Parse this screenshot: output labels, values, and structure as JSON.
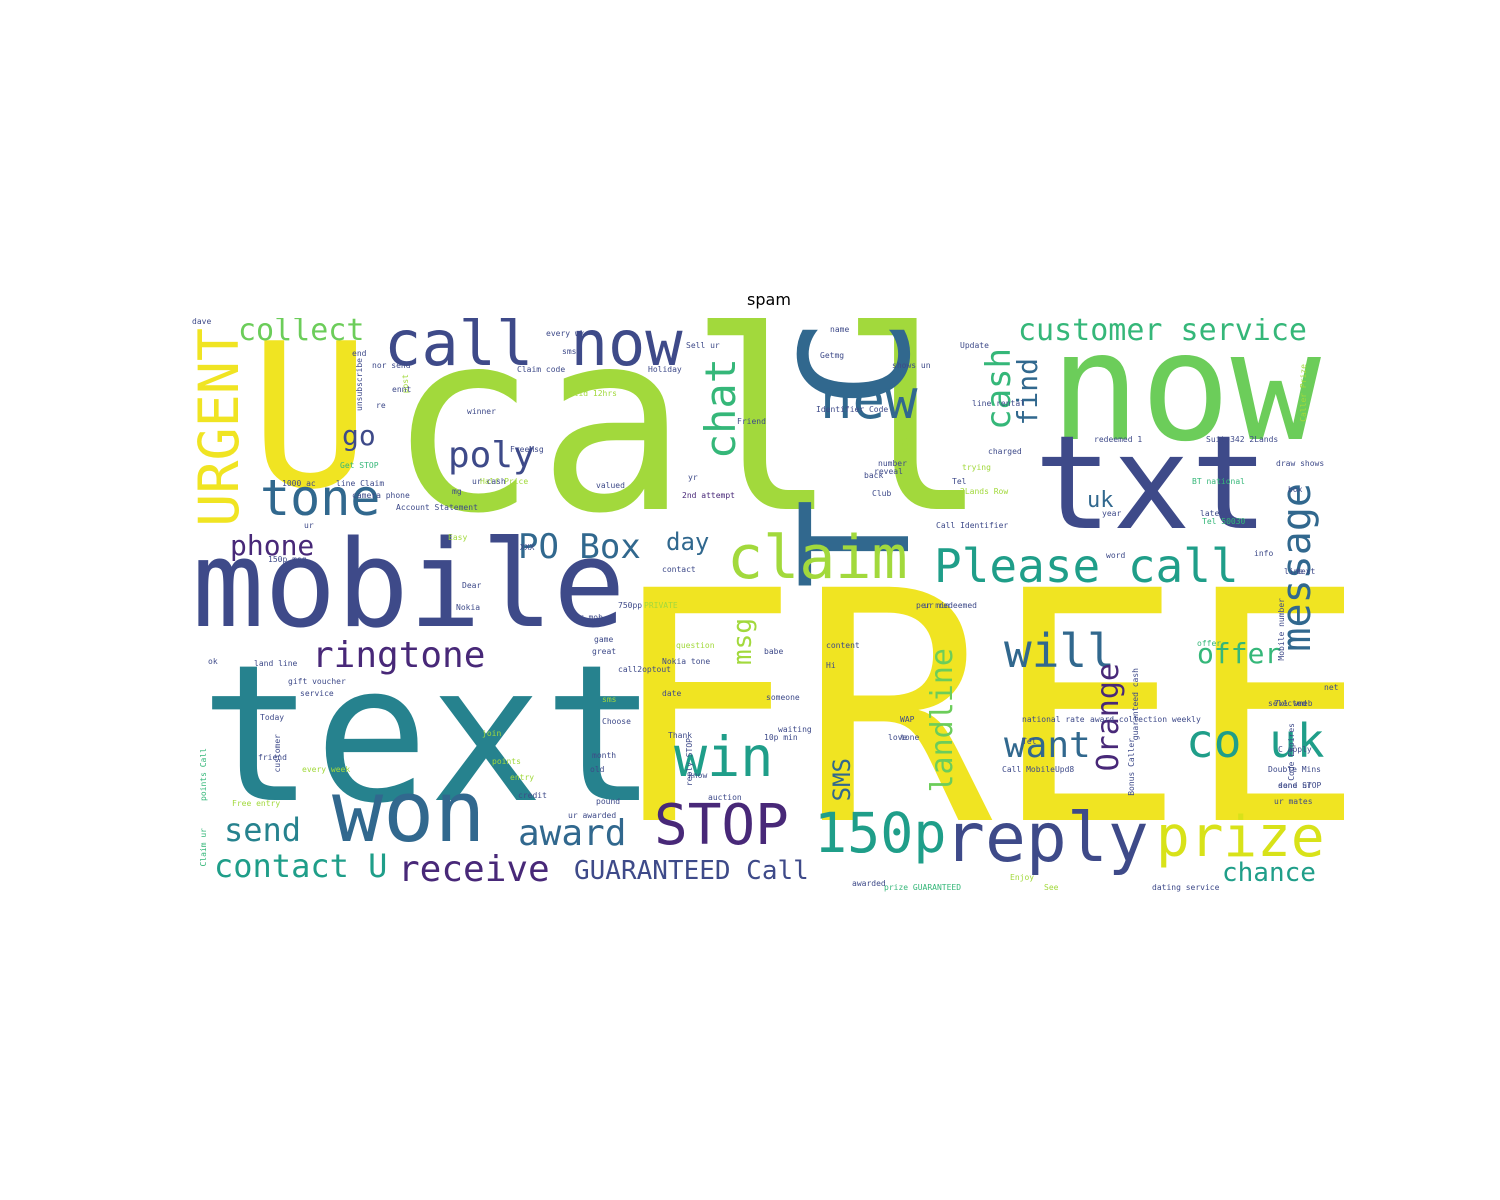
{
  "title": "spam",
  "palette": [
    "#f0e422",
    "#a2d93c",
    "#6ccd5a",
    "#35b779",
    "#1f9e89",
    "#26828e",
    "#31688e",
    "#3e4a89",
    "#482878",
    "#440154"
  ],
  "words": [
    {
      "text": "FREE",
      "color": "#f0e422"
    },
    {
      "text": "call",
      "color": "#a2d93c"
    },
    {
      "text": "now",
      "color": "#6ccd5a"
    },
    {
      "text": "U",
      "color": "#f0e422"
    },
    {
      "text": "text",
      "color": "#26828e"
    },
    {
      "text": "mobile",
      "color": "#3e4a89"
    },
    {
      "text": "txt",
      "color": "#3e4a89"
    },
    {
      "text": "won",
      "color": "#31688e"
    },
    {
      "text": "T C",
      "color": "#31688e"
    },
    {
      "text": "reply",
      "color": "#3e4a89"
    },
    {
      "text": "claim",
      "color": "#a2d93c"
    },
    {
      "text": "call now",
      "color": "#3e4a89"
    },
    {
      "text": "prize",
      "color": "#d8e219"
    },
    {
      "text": "STOP",
      "color": "#482878"
    },
    {
      "text": "150p",
      "color": "#1f9e89"
    },
    {
      "text": "win",
      "color": "#1f9e89"
    },
    {
      "text": "Please call",
      "color": "#1f9e89"
    },
    {
      "text": "new",
      "color": "#31688e"
    },
    {
      "text": "co uk",
      "color": "#1f9e89"
    },
    {
      "text": "URGENT",
      "color": "#f0e422"
    },
    {
      "text": "tone",
      "color": "#31688e"
    },
    {
      "text": "chat",
      "color": "#35b779"
    },
    {
      "text": "will",
      "color": "#31688e"
    },
    {
      "text": "message",
      "color": "#31688e"
    },
    {
      "text": "want",
      "color": "#31688e"
    },
    {
      "text": "ringtone",
      "color": "#482878"
    },
    {
      "text": "award",
      "color": "#31688e"
    },
    {
      "text": "poly",
      "color": "#3e4a89"
    },
    {
      "text": "PO Box",
      "color": "#31688e"
    },
    {
      "text": "receive",
      "color": "#482878"
    },
    {
      "text": "customer service",
      "color": "#35b779"
    },
    {
      "text": "cash",
      "color": "#35b779"
    },
    {
      "text": "contact U",
      "color": "#1f9e89"
    },
    {
      "text": "send",
      "color": "#26828e"
    },
    {
      "text": "collect",
      "color": "#6ccd5a"
    },
    {
      "text": "landline",
      "color": "#6ccd5a"
    },
    {
      "text": "Orange",
      "color": "#482878"
    },
    {
      "text": "offer",
      "color": "#35b779"
    },
    {
      "text": "find",
      "color": "#31688e"
    },
    {
      "text": "phone",
      "color": "#482878"
    },
    {
      "text": "GUARANTEED Call",
      "color": "#3e4a89"
    },
    {
      "text": "msg",
      "color": "#a2d93c"
    },
    {
      "text": "chance",
      "color": "#1f9e89"
    },
    {
      "text": "day",
      "color": "#31688e"
    },
    {
      "text": "SMS",
      "color": "#31688e"
    },
    {
      "text": "uk",
      "color": "#31688e"
    },
    {
      "text": "go",
      "color": "#3e4a89"
    },
    {
      "text": "Claim code",
      "color": "#3e4a89"
    },
    {
      "text": "Holiday",
      "color": "#3e4a89"
    },
    {
      "text": "winner",
      "color": "#3e4a89"
    },
    {
      "text": "Valid 12hrs",
      "color": "#a2d93c"
    },
    {
      "text": "FreeMsg",
      "color": "#3e4a89"
    },
    {
      "text": "Friend",
      "color": "#3e4a89"
    },
    {
      "text": "Half Price",
      "color": "#a2d93c"
    },
    {
      "text": "Identifier Code",
      "color": "#3e4a89"
    },
    {
      "text": "number",
      "color": "#3e4a89"
    },
    {
      "text": "charged",
      "color": "#3e4a89"
    },
    {
      "text": "line rental",
      "color": "#3e4a89"
    },
    {
      "text": "redeemed 1",
      "color": "#3e4a89"
    },
    {
      "text": "Suite342 2Lands",
      "color": "#3e4a89"
    },
    {
      "text": "draw shows",
      "color": "#3e4a89"
    },
    {
      "text": "2nd attempt",
      "color": "#482878"
    },
    {
      "text": "valued",
      "color": "#3e4a89"
    },
    {
      "text": "ur cash",
      "color": "#3e4a89"
    },
    {
      "text": "Call Identifier",
      "color": "#3e4a89"
    },
    {
      "text": "camera phone",
      "color": "#3e4a89"
    },
    {
      "text": "Account Statement",
      "color": "#3e4a89"
    },
    {
      "text": "land line",
      "color": "#3e4a89"
    },
    {
      "text": "gift voucher",
      "color": "#3e4a89"
    },
    {
      "text": "question",
      "color": "#a2d93c"
    },
    {
      "text": "Nokia tone",
      "color": "#3e4a89"
    },
    {
      "text": "per min",
      "color": "#3e4a89"
    },
    {
      "text": "content",
      "color": "#3e4a89"
    },
    {
      "text": "ur redeemed",
      "color": "#3e4a89"
    },
    {
      "text": "offer",
      "color": "#35b779"
    },
    {
      "text": "Mobile number",
      "color": "#3e4a89"
    },
    {
      "text": "national rate",
      "color": "#3e4a89"
    },
    {
      "text": "award collection weekly",
      "color": "#3e4a89"
    },
    {
      "text": "Call MobileUpd8",
      "color": "#3e4a89"
    },
    {
      "text": "Double Mins",
      "color": "#3e4a89"
    },
    {
      "text": "send STOP",
      "color": "#3e4a89"
    },
    {
      "text": "ur mates",
      "color": "#3e4a89"
    },
    {
      "text": "auction",
      "color": "#3e4a89"
    },
    {
      "text": "credit",
      "color": "#3e4a89"
    },
    {
      "text": "pound",
      "color": "#3e4a89"
    },
    {
      "text": "ur awarded",
      "color": "#3e4a89"
    },
    {
      "text": "every week",
      "color": "#a2d93c"
    },
    {
      "text": "Free entry",
      "color": "#a2d93c"
    },
    {
      "text": "friend",
      "color": "#3e4a89"
    },
    {
      "text": "Today",
      "color": "#3e4a89"
    },
    {
      "text": "service",
      "color": "#3e4a89"
    },
    {
      "text": "Choose",
      "color": "#3e4a89"
    },
    {
      "text": "Thank",
      "color": "#3e4a89"
    },
    {
      "text": "waiting",
      "color": "#3e4a89"
    },
    {
      "text": "10p min",
      "color": "#3e4a89"
    },
    {
      "text": "someone",
      "color": "#3e4a89"
    },
    {
      "text": "date",
      "color": "#3e4a89"
    },
    {
      "text": "great",
      "color": "#3e4a89"
    },
    {
      "text": "game",
      "color": "#3e4a89"
    },
    {
      "text": "Dear",
      "color": "#3e4a89"
    },
    {
      "text": "Nokia",
      "color": "#3e4a89"
    },
    {
      "text": "PRIVATE",
      "color": "#a2d93c"
    },
    {
      "text": "ur mob",
      "color": "#3e4a89"
    },
    {
      "text": "XXX",
      "color": "#3e4a89"
    },
    {
      "text": "150p msg",
      "color": "#3e4a89"
    },
    {
      "text": "Club",
      "color": "#3e4a89"
    },
    {
      "text": "back",
      "color": "#3e4a89"
    },
    {
      "text": "reveal",
      "color": "#3e4a89"
    },
    {
      "text": "Bonus Caller",
      "color": "#3e4a89"
    },
    {
      "text": "guaranteed cash",
      "color": "#3e4a89"
    },
    {
      "text": "Code Expires",
      "color": "#3e4a89"
    },
    {
      "text": "C apply",
      "color": "#3e4a89"
    },
    {
      "text": "7xl wmeb",
      "color": "#3e4a89"
    },
    {
      "text": "selected",
      "color": "#3e4a89"
    },
    {
      "text": "dating service",
      "color": "#3e4a89"
    },
    {
      "text": "awarded",
      "color": "#3e4a89"
    },
    {
      "text": "prize GUARANTEED",
      "color": "#35b779"
    },
    {
      "text": "Enjoy",
      "color": "#a2d93c"
    },
    {
      "text": "See",
      "color": "#a2d93c"
    },
    {
      "text": "Update",
      "color": "#3e4a89"
    },
    {
      "text": "name",
      "color": "#3e4a89"
    },
    {
      "text": "Getmg",
      "color": "#3e4a89"
    },
    {
      "text": "shows un",
      "color": "#3e4a89"
    },
    {
      "text": "latest",
      "color": "#3e4a89"
    },
    {
      "text": "year",
      "color": "#3e4a89"
    },
    {
      "text": "word",
      "color": "#3e4a89"
    },
    {
      "text": "Caller Prize",
      "color": "#a2d93c"
    },
    {
      "text": "every wk",
      "color": "#3e4a89"
    },
    {
      "text": "smsy",
      "color": "#3e4a89"
    },
    {
      "text": "Sell ur",
      "color": "#3e4a89"
    },
    {
      "text": "end",
      "color": "#3e4a89"
    },
    {
      "text": "nor send",
      "color": "#3e4a89"
    },
    {
      "text": "post",
      "color": "#a2d93c"
    },
    {
      "text": "re",
      "color": "#3e4a89"
    },
    {
      "text": "ennt",
      "color": "#3e4a89"
    },
    {
      "text": "Get STOP",
      "color": "#35b779"
    },
    {
      "text": "1000 ac",
      "color": "#3e4a89"
    },
    {
      "text": "line Claim",
      "color": "#3e4a89"
    },
    {
      "text": "mg",
      "color": "#3e4a89"
    },
    {
      "text": "unsubscribe",
      "color": "#3e4a89"
    },
    {
      "text": "Tel",
      "color": "#3e4a89"
    },
    {
      "text": "trying",
      "color": "#a2d93c"
    },
    {
      "text": "2Lands Row",
      "color": "#a2d93c"
    },
    {
      "text": "ur",
      "color": "#3e4a89"
    },
    {
      "text": "Easy",
      "color": "#a2d93c"
    },
    {
      "text": "babe",
      "color": "#3e4a89"
    },
    {
      "text": "Hi",
      "color": "#3e4a89"
    },
    {
      "text": "WAP",
      "color": "#3e4a89"
    },
    {
      "text": "love",
      "color": "#3e4a89"
    },
    {
      "text": "reply STOP",
      "color": "#3e4a89"
    },
    {
      "text": "know",
      "color": "#3e4a89"
    },
    {
      "text": "month",
      "color": "#3e4a89"
    },
    {
      "text": "old",
      "color": "#3e4a89"
    },
    {
      "text": "points",
      "color": "#a2d93c"
    },
    {
      "text": "join",
      "color": "#a2d93c"
    },
    {
      "text": "entry",
      "color": "#a2d93c"
    },
    {
      "text": "customer",
      "color": "#3e4a89"
    },
    {
      "text": "points Call",
      "color": "#35b779"
    },
    {
      "text": "Claim ur",
      "color": "#35b779"
    },
    {
      "text": "sms",
      "color": "#a2d93c"
    },
    {
      "text": "call2optout",
      "color": "#3e4a89"
    },
    {
      "text": "contact",
      "color": "#3e4a89"
    },
    {
      "text": "box",
      "color": "#3e4a89"
    },
    {
      "text": "line",
      "color": "#3e4a89"
    },
    {
      "text": "info",
      "color": "#3e4a89"
    },
    {
      "text": "done ur",
      "color": "#3e4a89"
    },
    {
      "text": "Tel 50030",
      "color": "#35b779"
    },
    {
      "text": "ok",
      "color": "#3e4a89"
    },
    {
      "text": "yr",
      "color": "#3e4a89"
    },
    {
      "text": "750pp",
      "color": "#3e4a89"
    },
    {
      "text": "WORLD",
      "color": "#a2d93c"
    },
    {
      "text": "BT national",
      "color": "#35b779"
    },
    {
      "text": "Tel",
      "color": "#3e4a89"
    },
    {
      "text": "tone",
      "color": "#3e4a89"
    },
    {
      "text": "text",
      "color": "#3e4a89"
    },
    {
      "text": "net",
      "color": "#3e4a89"
    },
    {
      "text": "dave",
      "color": "#3e4a89"
    }
  ]
}
